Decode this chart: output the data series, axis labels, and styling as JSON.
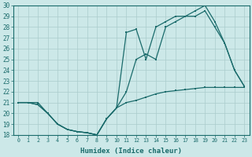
{
  "xlabel": "Humidex (Indice chaleur)",
  "bg_color": "#cce8e8",
  "line_color": "#1a6b6b",
  "grid_color": "#aacccc",
  "xmin": -0.5,
  "xmax": 23.5,
  "ymin": 18,
  "ymax": 30,
  "yticks": [
    18,
    19,
    20,
    21,
    22,
    23,
    24,
    25,
    26,
    27,
    28,
    29,
    30
  ],
  "xticks": [
    0,
    1,
    2,
    3,
    4,
    5,
    6,
    7,
    8,
    9,
    10,
    11,
    12,
    13,
    14,
    15,
    16,
    17,
    18,
    19,
    20,
    21,
    22,
    23
  ],
  "line1_x": [
    0,
    1,
    2,
    3,
    4,
    5,
    6,
    7,
    8,
    9,
    10,
    11,
    12,
    13,
    14,
    15,
    16,
    17,
    18,
    19,
    20,
    21,
    22,
    23
  ],
  "line1_y": [
    21,
    21,
    21,
    20,
    19,
    18.5,
    18.3,
    18.2,
    18.0,
    19.5,
    20.5,
    21.0,
    21.2,
    21.5,
    21.8,
    22.0,
    22.1,
    22.2,
    22.3,
    22.4,
    22.4,
    22.4,
    22.4,
    22.4
  ],
  "line2_x": [
    0,
    1,
    2,
    3,
    4,
    5,
    6,
    7,
    8,
    9,
    10,
    11,
    12,
    13,
    14,
    15,
    16,
    17,
    18,
    19,
    20,
    21,
    22,
    23
  ],
  "line2_y": [
    21,
    21,
    20.8,
    20,
    19,
    18.5,
    18.3,
    18.2,
    18.0,
    19.5,
    20.5,
    22.0,
    25.0,
    25.5,
    25.0,
    28.0,
    28.5,
    29.0,
    29.0,
    29.5,
    28.0,
    26.5,
    24.0,
    22.5
  ],
  "line3_x": [
    0,
    1,
    2,
    3,
    4,
    5,
    6,
    7,
    8,
    9,
    10,
    11,
    12,
    13,
    14,
    15,
    16,
    17,
    18,
    19,
    20,
    21,
    22,
    23
  ],
  "line3_y": [
    21,
    21,
    20.8,
    20,
    19,
    18.5,
    18.3,
    18.2,
    18.0,
    19.5,
    20.5,
    27.5,
    27.8,
    25.0,
    28.0,
    28.5,
    29.0,
    29.0,
    29.5,
    30.0,
    28.5,
    26.5,
    24.0,
    22.5
  ]
}
